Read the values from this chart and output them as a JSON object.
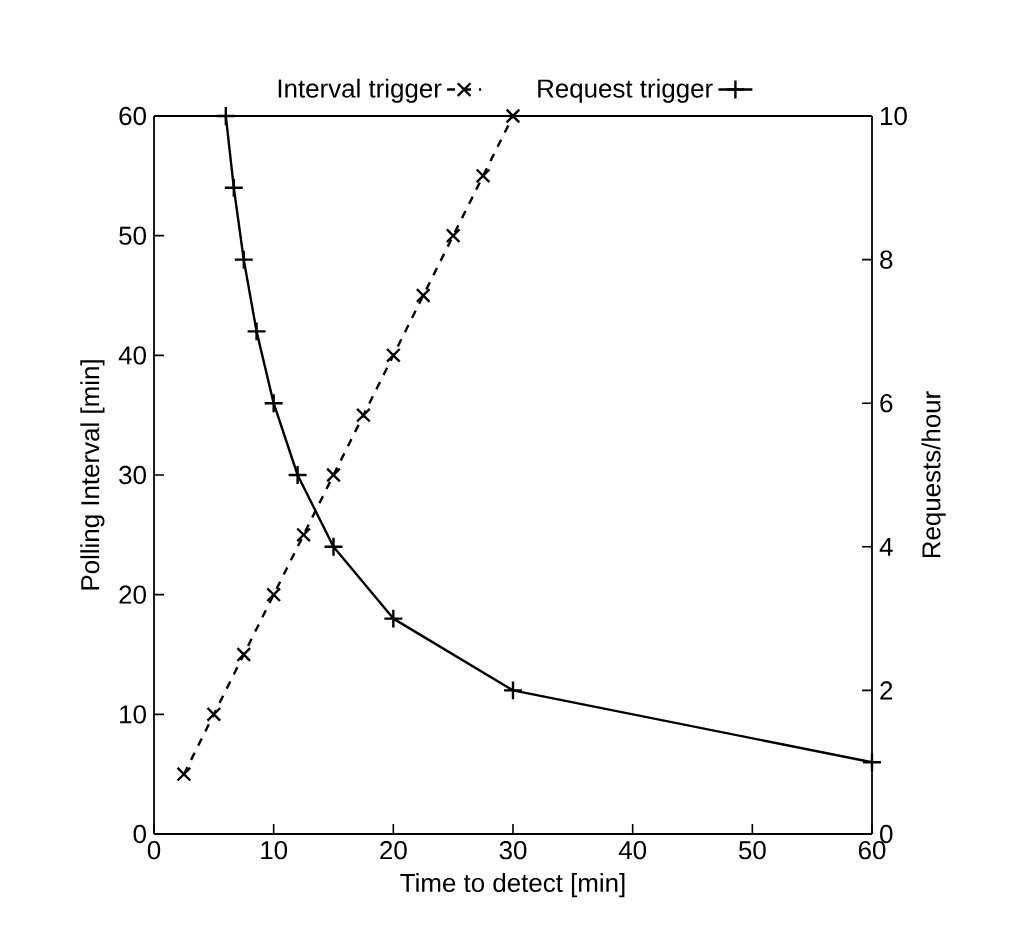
{
  "chart_data": {
    "type": "line",
    "xlabel": "Time to detect [min]",
    "ylabel": "Polling Interval [min]",
    "y2label": "Requests/hour",
    "xlim": [
      0,
      60
    ],
    "xticks": [
      0,
      10,
      20,
      30,
      40,
      50,
      60
    ],
    "ylim": [
      0,
      60
    ],
    "yticks": [
      0,
      10,
      20,
      30,
      40,
      50,
      60
    ],
    "y2lim": [
      0,
      10
    ],
    "y2ticks": [
      0,
      2,
      4,
      6,
      8,
      10
    ],
    "legend": "top",
    "grid": false,
    "series": [
      {
        "name": "Interval trigger",
        "color": "#000000",
        "marker": "cross",
        "line_style": "dashed",
        "x": [
          2.5,
          5,
          7.5,
          10,
          12.5,
          15,
          17.5,
          20,
          22.5,
          25,
          27.5,
          30
        ],
        "values": [
          5,
          10,
          15,
          20,
          25,
          30,
          35,
          40,
          45,
          50,
          55,
          60
        ]
      },
      {
        "name": "Request trigger",
        "color": "#000000",
        "marker": "plus",
        "line_style": "solid",
        "axis": "y2",
        "x": [
          6,
          6.67,
          7.5,
          8.57,
          10,
          12,
          15,
          20,
          30,
          60
        ],
        "values": [
          10,
          9,
          8,
          7,
          6,
          5,
          4,
          3,
          2,
          1
        ]
      }
    ]
  }
}
